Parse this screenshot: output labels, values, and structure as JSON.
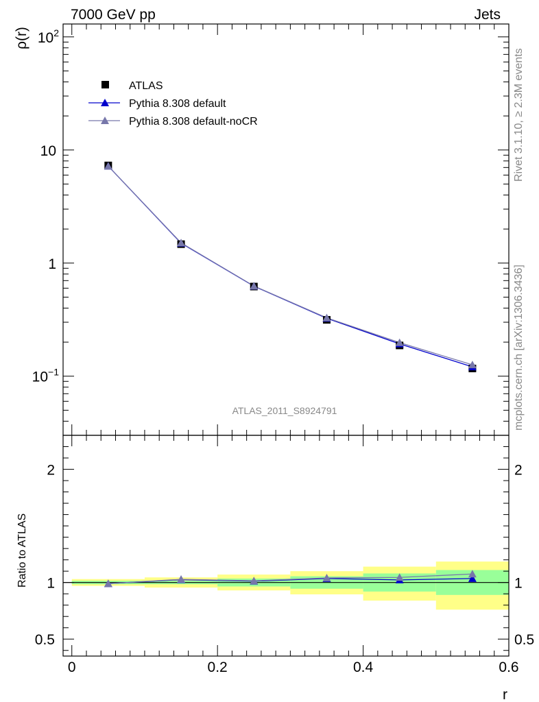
{
  "header": {
    "left": "7000 GeV pp",
    "right": "Jets"
  },
  "side_text": {
    "rivet": "Rivet 3.1.10, ≥ 2.3M events",
    "source": "mcplots.cern.ch [arXiv:1306.3436]"
  },
  "analysis_label": "ATLAS_2011_S8924791",
  "colors": {
    "data": "#000000",
    "default": "#0000cc",
    "nocr": "#7777aa",
    "band_inner": "#99ff99",
    "band_outer": "#ffff88"
  },
  "chart_data": [
    {
      "type": "line",
      "panel": "main",
      "ylabel": "ρ(r)",
      "yscale": "log",
      "ylim": [
        0.03,
        130
      ],
      "xlim": [
        -0.012,
        0.6
      ],
      "yticks": [
        {
          "value": 0.1,
          "base": "10",
          "exp": "−1"
        },
        {
          "value": 1,
          "base": "1",
          "exp": ""
        },
        {
          "value": 10,
          "base": "10",
          "exp": ""
        },
        {
          "value": 100,
          "base": "10",
          "exp": "2"
        }
      ],
      "legend": [
        "ATLAS",
        "Pythia 8.308 default",
        "Pythia 8.308 default-noCR"
      ],
      "legend_position": "top-left",
      "x": [
        0.05,
        0.15,
        0.25,
        0.35,
        0.45,
        0.55
      ],
      "series": [
        {
          "name": "ATLAS",
          "marker": "square",
          "values": [
            7.3,
            1.47,
            0.62,
            0.315,
            0.187,
            0.117
          ]
        },
        {
          "name": "Pythia 8.308 default",
          "marker": "triangle",
          "values": [
            7.2,
            1.5,
            0.625,
            0.325,
            0.193,
            0.121
          ]
        },
        {
          "name": "Pythia 8.308 default-noCR",
          "marker": "triangle",
          "values": [
            7.2,
            1.51,
            0.627,
            0.328,
            0.198,
            0.126
          ]
        }
      ]
    },
    {
      "type": "line",
      "panel": "ratio",
      "ylabel": "Ratio to ATLAS",
      "xlabel": "r",
      "ylim": [
        0.35,
        2.3
      ],
      "xlim": [
        -0.012,
        0.6
      ],
      "xticks": [
        "0",
        "0.2",
        "0.4",
        "0.6"
      ],
      "yticks": [
        "0.5",
        "1",
        "2"
      ],
      "x": [
        0.05,
        0.15,
        0.25,
        0.35,
        0.45,
        0.55
      ],
      "bands": {
        "edges": [
          0.0,
          0.1,
          0.2,
          0.3,
          0.4,
          0.5,
          0.6
        ],
        "inner_low": [
          0.985,
          0.985,
          0.965,
          0.945,
          0.92,
          0.89
        ],
        "inner_high": [
          1.015,
          1.015,
          1.035,
          1.055,
          1.08,
          1.11
        ],
        "outer_low": [
          0.97,
          0.955,
          0.93,
          0.895,
          0.84,
          0.76
        ],
        "outer_high": [
          1.03,
          1.045,
          1.07,
          1.1,
          1.14,
          1.185
        ]
      },
      "series": [
        {
          "name": "Pythia 8.308 default",
          "values": [
            0.99,
            1.025,
            1.012,
            1.035,
            1.023,
            1.035
          ]
        },
        {
          "name": "Pythia 8.308 default-noCR",
          "values": [
            0.99,
            1.028,
            1.015,
            1.04,
            1.045,
            1.075
          ]
        }
      ]
    }
  ]
}
